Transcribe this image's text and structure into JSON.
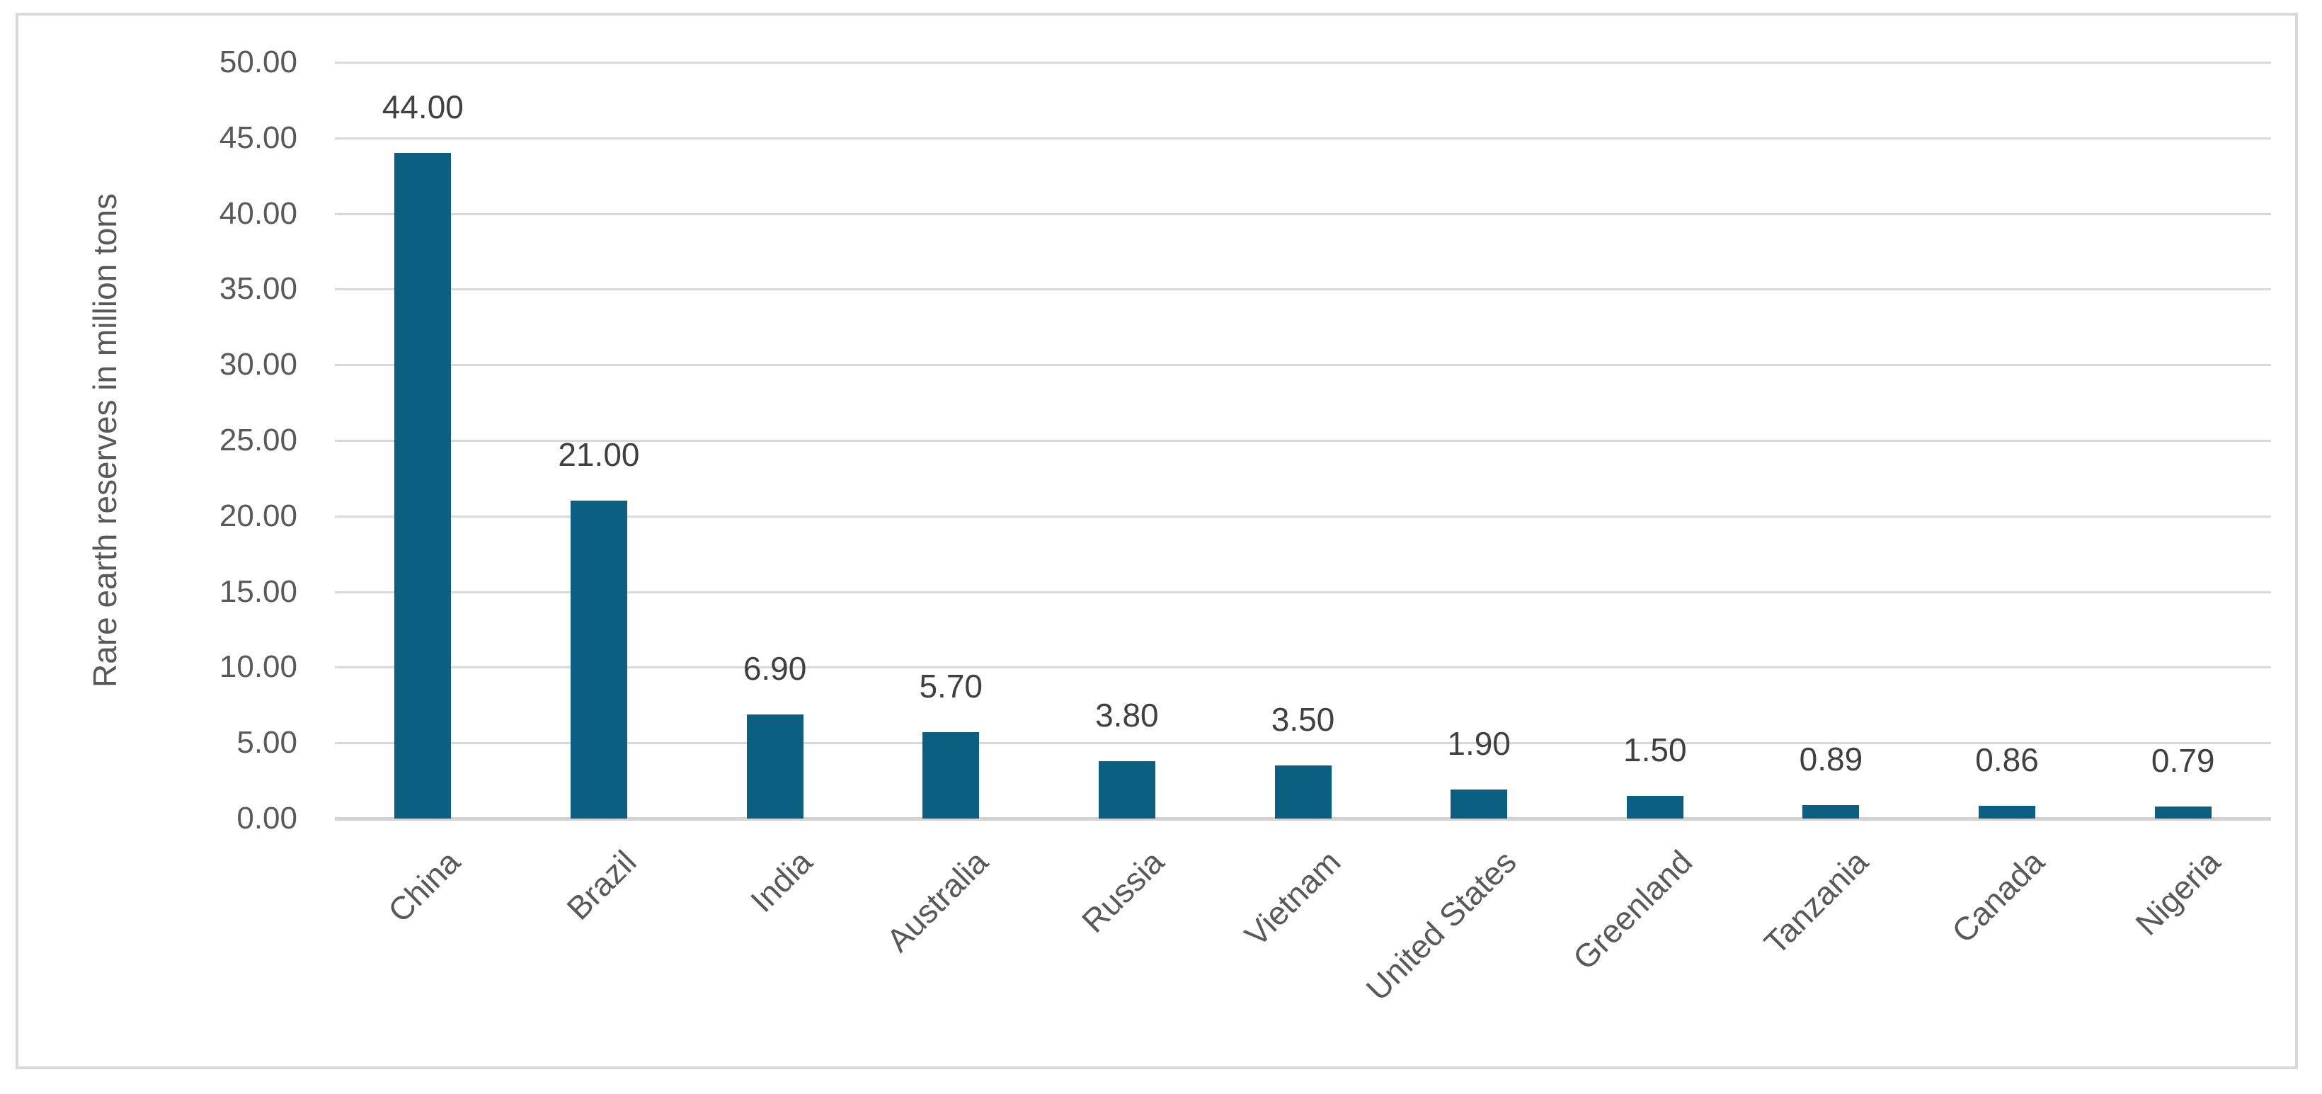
{
  "chart_data": {
    "type": "bar",
    "title": "",
    "categories": [
      "China",
      "Brazil",
      "India",
      "Australia",
      "Russia",
      "Vietnam",
      "United States",
      "Greenland",
      "Tanzania",
      "Canada",
      "Nigeria"
    ],
    "values": [
      44.0,
      21.0,
      6.9,
      5.7,
      3.8,
      3.5,
      1.9,
      1.5,
      0.89,
      0.86,
      0.79
    ],
    "data_labels": [
      "44.00",
      "21.00",
      "6.90",
      "5.70",
      "3.80",
      "3.50",
      "1.90",
      "1.50",
      "0.89",
      "0.86",
      "0.79"
    ],
    "xlabel": "",
    "ylabel": "Rare earth reserves in million tons",
    "ylim": [
      0,
      50
    ],
    "y_tick_step": 5,
    "y_tick_labels": [
      "0.00",
      "5.00",
      "10.00",
      "15.00",
      "20.00",
      "25.00",
      "30.00",
      "35.00",
      "40.00",
      "45.00",
      "50.00"
    ],
    "grid": "horizontal-on",
    "legend": "none",
    "colors": {
      "bar": "#0B5F81",
      "gridline": "#D9D9D9",
      "axis_line": "#D2D2D2",
      "axis_text": "#595959",
      "data_label_text": "#404040",
      "frame_border": "#D9D9D9",
      "background": "#FFFFFF"
    }
  }
}
